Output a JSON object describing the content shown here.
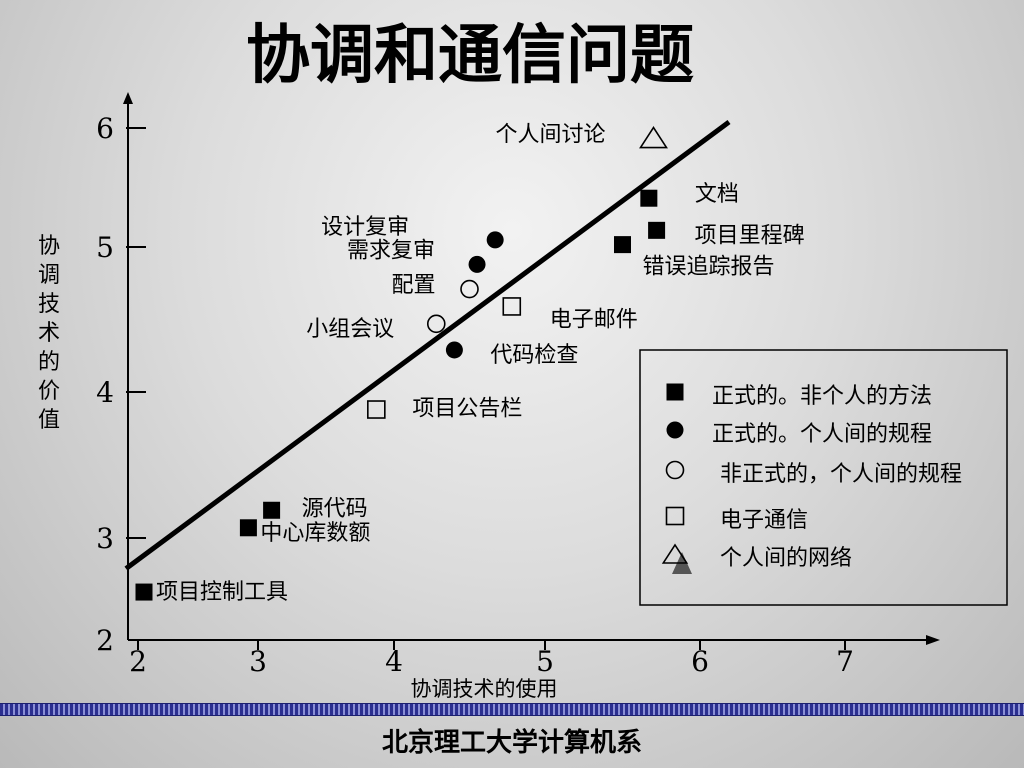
{
  "slide": {
    "title": "协调和通信问题",
    "footer": "北京理工大学计算机系"
  },
  "chart_data": {
    "type": "scatter",
    "title": "协调和通信问题",
    "xlabel": "协调技术的使用",
    "ylabel": "协调技术的价值",
    "xlim": [
      2,
      7.5
    ],
    "ylim": [
      2,
      6.3
    ],
    "x_ticks": [
      "2",
      "3",
      "4",
      "5",
      "6",
      "7"
    ],
    "y_ticks": [
      "2",
      "3",
      "4",
      "5",
      "6"
    ],
    "grid": false,
    "legend_position": "lower-right",
    "legend": [
      {
        "marker": "filled-square",
        "label": "正式的。非个人的方法"
      },
      {
        "marker": "filled-circle",
        "label": "正式的。个人间的规程"
      },
      {
        "marker": "open-circle",
        "label": "非正式的，个人间的规程"
      },
      {
        "marker": "open-square",
        "label": "电子通信"
      },
      {
        "marker": "triangle",
        "label": "个人间的网络"
      }
    ],
    "trend_line": {
      "x": [
        1.9,
        6.2
      ],
      "y": [
        2.7,
        6.05
      ]
    },
    "points": [
      {
        "label": "项目控制工具",
        "x": 2.05,
        "y": 2.47,
        "marker": "filled-square"
      },
      {
        "label": "中心库数额",
        "x": 2.92,
        "y": 3.07,
        "marker": "filled-square"
      },
      {
        "label": "源代码",
        "x": 3.1,
        "y": 3.19,
        "marker": "filled-square"
      },
      {
        "label": "项目公告栏",
        "x": 3.87,
        "y": 3.88,
        "marker": "open-square"
      },
      {
        "label": "电子邮件",
        "x": 4.78,
        "y": 4.59,
        "marker": "open-square"
      },
      {
        "label": "代码检查",
        "x": 4.4,
        "y": 4.29,
        "marker": "filled-circle"
      },
      {
        "label": "小组会议",
        "x": 4.28,
        "y": 4.47,
        "marker": "open-circle"
      },
      {
        "label": "配置",
        "x": 4.5,
        "y": 4.71,
        "marker": "open-circle"
      },
      {
        "label": "需求复审",
        "x": 4.55,
        "y": 4.88,
        "marker": "filled-circle"
      },
      {
        "label": "设计复审",
        "x": 4.67,
        "y": 5.06,
        "marker": "filled-circle"
      },
      {
        "label": "错误追踪报告",
        "x": 5.5,
        "y": 5.02,
        "marker": "filled-square"
      },
      {
        "label": "项目里程碑",
        "x": 5.72,
        "y": 5.14,
        "marker": "filled-square"
      },
      {
        "label": "文档",
        "x": 5.67,
        "y": 5.41,
        "marker": "filled-square"
      },
      {
        "label": "个人间讨论",
        "x": 5.7,
        "y": 5.92,
        "marker": "triangle"
      }
    ]
  }
}
